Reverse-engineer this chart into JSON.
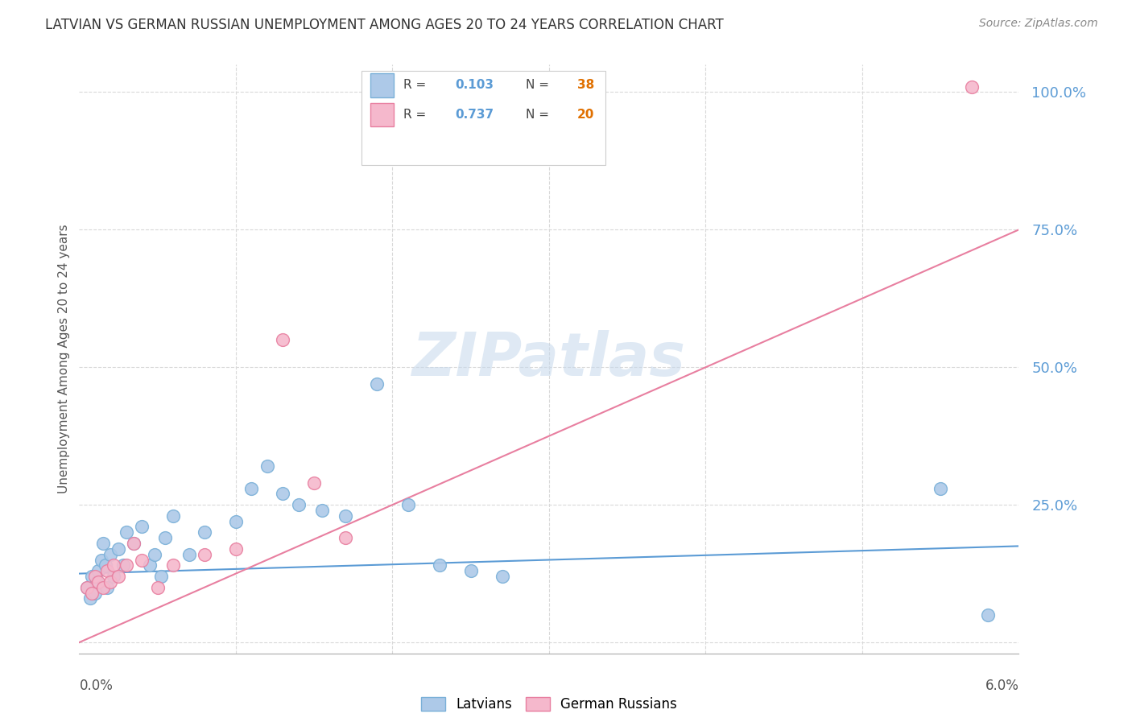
{
  "title": "LATVIAN VS GERMAN RUSSIAN UNEMPLOYMENT AMONG AGES 20 TO 24 YEARS CORRELATION CHART",
  "source": "Source: ZipAtlas.com",
  "ylabel": "Unemployment Among Ages 20 to 24 years",
  "xlim": [
    0.0,
    6.0
  ],
  "ylim": [
    -2,
    105
  ],
  "yticks": [
    0,
    25,
    50,
    75,
    100
  ],
  "legend_latvians_R": "0.103",
  "legend_latvians_N": "38",
  "legend_german_R": "0.737",
  "legend_german_N": "20",
  "latvian_color_face": "#adc9e8",
  "latvian_color_edge": "#7ab0d8",
  "latvian_line_color": "#5b9bd5",
  "german_color_face": "#f5b8cc",
  "german_color_edge": "#e87fa0",
  "german_line_color": "#e87fa0",
  "r_n_color": "#5b9bd5",
  "n_val_color": "#e07000",
  "watermark": "ZIPatlas",
  "background_color": "#ffffff",
  "grid_color": "#d9d9d9",
  "latvian_x": [
    0.05,
    0.07,
    0.08,
    0.1,
    0.11,
    0.12,
    0.14,
    0.15,
    0.17,
    0.18,
    0.2,
    0.22,
    0.25,
    0.28,
    0.3,
    0.35,
    0.4,
    0.45,
    0.48,
    0.52,
    0.55,
    0.6,
    0.7,
    0.8,
    1.0,
    1.1,
    1.2,
    1.3,
    1.4,
    1.55,
    1.7,
    1.9,
    2.1,
    2.3,
    2.5,
    2.7,
    5.5,
    5.8
  ],
  "latvian_y": [
    10,
    8,
    12,
    9,
    11,
    13,
    15,
    18,
    14,
    10,
    16,
    12,
    17,
    14,
    20,
    18,
    21,
    14,
    16,
    12,
    19,
    23,
    16,
    20,
    22,
    28,
    32,
    27,
    25,
    24,
    23,
    47,
    25,
    14,
    13,
    12,
    28,
    5
  ],
  "german_x": [
    0.05,
    0.08,
    0.1,
    0.12,
    0.15,
    0.18,
    0.2,
    0.22,
    0.25,
    0.3,
    0.35,
    0.4,
    0.5,
    0.6,
    0.8,
    1.0,
    1.3,
    1.5,
    1.7,
    5.7
  ],
  "german_y": [
    10,
    9,
    12,
    11,
    10,
    13,
    11,
    14,
    12,
    14,
    18,
    15,
    10,
    14,
    16,
    17,
    55,
    29,
    19,
    101
  ],
  "lat_line_x": [
    0.0,
    6.0
  ],
  "lat_line_y": [
    12.5,
    17.5
  ],
  "ger_line_x": [
    0.0,
    6.0
  ],
  "ger_line_y": [
    0.0,
    75.0
  ]
}
